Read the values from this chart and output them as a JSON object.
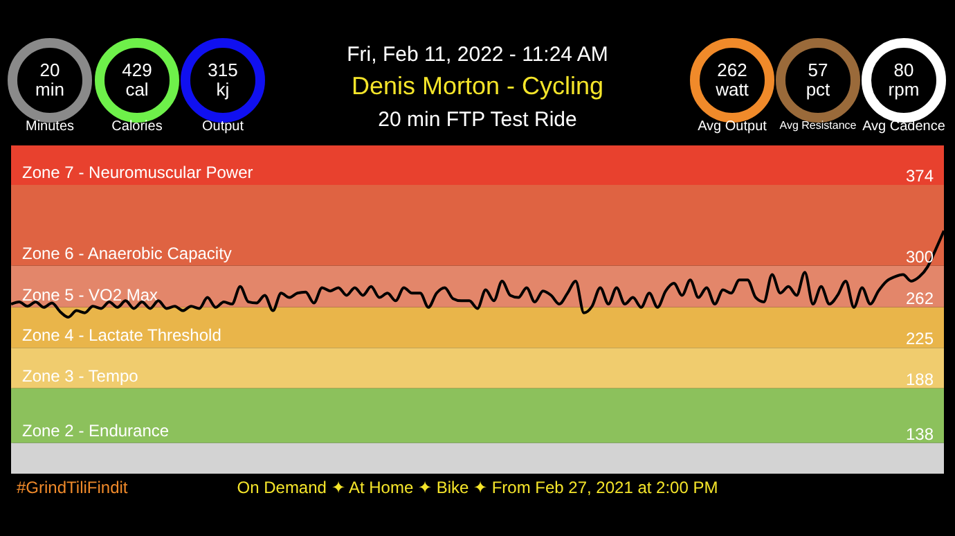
{
  "chart_data": {
    "type": "line",
    "title": "Denis Morton - Cycling",
    "subtitle": "20 min FTP Test Ride",
    "annotations": [
      "Fri, Feb 11, 2022 - 11:24 AM",
      "20",
      "min",
      "Minutes",
      "429",
      "cal",
      "Calories",
      "315",
      "kj",
      "Output",
      "262",
      "watt",
      "Avg Output",
      "57",
      "pct",
      "Avg Resistance",
      "80",
      "rpm",
      "Avg Cadence",
      "#GrindTiliFindit",
      "On Demand ✦ At Home ✦ Bike ✦ From Feb 27, 2021 at 2:00 PM"
    ],
    "categories": [
      null,
      null,
      null,
      null,
      null,
      null,
      null,
      null,
      null,
      null,
      null,
      null,
      null,
      null,
      null,
      null,
      null,
      null,
      null,
      null,
      null,
      null,
      null,
      null,
      null,
      null,
      null,
      null,
      null,
      null,
      null,
      null,
      null,
      null,
      null,
      null,
      null,
      null,
      null,
      null,
      null,
      null,
      null,
      null,
      null,
      null,
      null,
      null,
      null,
      null,
      null,
      null,
      null,
      null,
      null,
      null,
      null,
      null,
      null,
      null,
      null,
      null,
      null,
      null,
      null,
      null,
      null,
      null,
      null,
      null,
      null,
      null,
      null,
      null,
      null,
      null,
      null,
      null,
      null,
      null,
      null,
      null,
      null,
      null,
      null,
      null,
      null,
      null,
      null,
      null,
      null,
      null,
      null,
      null,
      null,
      null,
      null,
      null,
      null,
      null,
      null,
      null,
      null,
      null,
      null,
      null,
      null,
      null,
      null,
      null,
      null,
      null,
      null,
      null,
      null
    ],
    "series": [
      {
        "color": "#000000",
        "values": [
          256,
          258,
          254,
          258,
          253,
          257,
          249,
          244,
          250,
          248,
          254,
          252,
          258,
          253,
          259,
          252,
          258,
          252,
          259,
          252,
          254,
          250,
          254,
          252,
          262,
          253,
          258,
          256,
          272,
          258,
          257,
          264,
          250,
          266,
          262,
          266,
          267,
          257,
          271,
          268,
          271,
          264,
          271,
          264,
          272,
          262,
          266,
          259,
          271,
          266,
          266,
          253,
          266,
          271,
          261,
          259,
          259,
          252,
          269,
          259,
          277,
          264,
          262,
          271,
          258,
          268,
          264,
          256,
          266,
          277,
          248,
          254,
          271,
          256,
          271,
          256,
          262,
          253,
          266,
          253,
          268,
          275,
          264,
          278,
          262,
          271,
          256,
          269,
          266,
          278,
          278,
          262,
          258,
          283,
          266,
          272,
          264,
          285,
          256,
          272,
          256,
          264,
          277,
          253,
          271,
          256,
          268,
          277,
          281,
          283,
          277,
          281,
          290,
          306,
          323
        ]
      }
    ],
    "ylim": [
      101,
      401
    ],
    "yticks": [
      138,
      188,
      225,
      262,
      300,
      374
    ],
    "tick_labels": "y",
    "bands": [
      {
        "axis": "y",
        "from": 365,
        "to": 401,
        "label": "Zone 7 - Neuromuscular Power",
        "color": "#e8412e"
      },
      {
        "axis": "y",
        "from": 291,
        "to": 365,
        "label": "Zone 6 - Anaerobic Capacity",
        "color": "#df6342"
      },
      {
        "axis": "y",
        "from": 253,
        "to": 291,
        "label": "Zone 5 - VO2 Max",
        "color": "#e3866a"
      },
      {
        "axis": "y",
        "from": 216,
        "to": 253,
        "label": "Zone 4 - Lactate Threshold",
        "color": "#e9b54a"
      },
      {
        "axis": "y",
        "from": 179,
        "to": 216,
        "label": "Zone 3 - Tempo",
        "color": "#f0cc6e"
      },
      {
        "axis": "y",
        "from": 129,
        "to": 179,
        "label": "Zone 2 - Endurance",
        "color": "#8cc15c"
      },
      {
        "axis": "y",
        "from": 101,
        "to": 129,
        "color": "#d3d3d3"
      }
    ]
  }
}
